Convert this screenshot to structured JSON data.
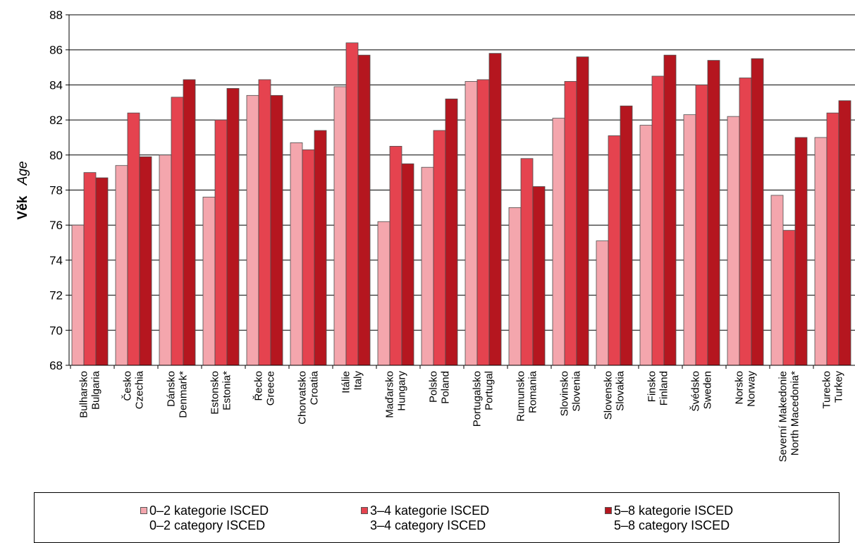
{
  "chart_data": {
    "type": "bar",
    "title": "",
    "ylabel": "Věk",
    "ylabel_en": "Age",
    "ylim": [
      68,
      88
    ],
    "yticks": [
      68,
      70,
      72,
      74,
      76,
      78,
      80,
      82,
      84,
      86,
      88
    ],
    "grid": true,
    "legend_position": "bottom",
    "categories": [
      {
        "cz": "Bulharsko",
        "en": "Bulgaria"
      },
      {
        "cz": "Česko",
        "en": "Czechia"
      },
      {
        "cz": "Dánsko",
        "en": "Denmark*"
      },
      {
        "cz": "Estonsko",
        "en": "Estonia*"
      },
      {
        "cz": "Řecko",
        "en": "Greece"
      },
      {
        "cz": "Chorvatsko",
        "en": "Croatia"
      },
      {
        "cz": "Itálie",
        "en": "Italy"
      },
      {
        "cz": "Maďarsko",
        "en": "Hungary"
      },
      {
        "cz": "Polsko",
        "en": "Poland"
      },
      {
        "cz": "Portugalsko",
        "en": "Portugal"
      },
      {
        "cz": "Rumunsko",
        "en": "Romania"
      },
      {
        "cz": "Slovinsko",
        "en": "Slovenia"
      },
      {
        "cz": "Slovensko",
        "en": "Slovakia"
      },
      {
        "cz": "Finsko",
        "en": "Finland"
      },
      {
        "cz": "Švédsko",
        "en": "Sweden"
      },
      {
        "cz": "Norsko",
        "en": "Norway"
      },
      {
        "cz": "Severní Makedonie",
        "en": "North Macedonia*"
      },
      {
        "cz": "Turecko",
        "en": "Turkey"
      }
    ],
    "series": [
      {
        "name": "0–2 kategorie ISCED",
        "name_en": "0–2 category ISCED",
        "color": "#f4a6ad",
        "values": [
          76.0,
          79.4,
          80.0,
          77.6,
          83.4,
          80.7,
          83.9,
          76.2,
          79.3,
          84.2,
          77.0,
          82.1,
          75.1,
          81.7,
          82.3,
          82.2,
          77.7,
          81.0
        ]
      },
      {
        "name": "3–4 kategorie ISCED",
        "name_en": "3–4 category ISCED",
        "color": "#e5434f",
        "values": [
          79.0,
          82.4,
          83.3,
          82.0,
          84.3,
          80.3,
          86.4,
          80.5,
          81.4,
          84.3,
          79.8,
          84.2,
          81.1,
          84.5,
          84.0,
          84.4,
          75.7,
          82.4
        ]
      },
      {
        "name": "5–8 kategorie ISCED",
        "name_en": "5–8 category ISCED",
        "color": "#b5161f",
        "values": [
          78.7,
          79.9,
          84.3,
          83.8,
          83.4,
          81.4,
          85.7,
          79.5,
          83.2,
          85.8,
          78.2,
          85.6,
          82.8,
          85.7,
          85.4,
          85.5,
          81.0,
          83.1
        ]
      }
    ]
  }
}
